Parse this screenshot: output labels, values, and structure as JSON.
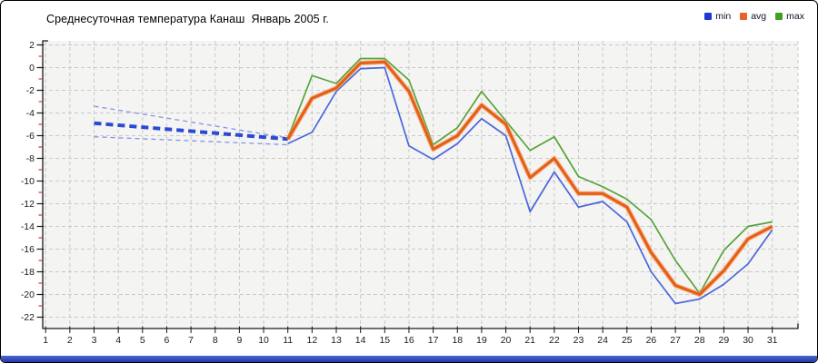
{
  "chart_data": {
    "type": "line",
    "title": "Среднесуточная температура Канаш  Январь 2005 г.",
    "xlabel": "",
    "ylabel": "",
    "xlim": [
      1,
      31
    ],
    "ylim": [
      -22,
      2
    ],
    "ytick_step": 2,
    "xtick_step": 1,
    "grid": true,
    "legend_position": "top-right",
    "legend": [
      {
        "label": "min",
        "color": "#1d39d4"
      },
      {
        "label": "avg",
        "color": "#e8632a"
      },
      {
        "label": "max",
        "color": "#3fa021"
      }
    ],
    "x": [
      11,
      12,
      13,
      14,
      15,
      16,
      17,
      18,
      19,
      20,
      21,
      22,
      23,
      24,
      25,
      26,
      27,
      28,
      29,
      30,
      31
    ],
    "series": [
      {
        "name": "min",
        "color": "#4a67dd",
        "values": [
          -6.7,
          -5.7,
          -2.1,
          -0.1,
          0.0,
          -6.9,
          -8.1,
          -6.7,
          -4.5,
          -6.0,
          -12.7,
          -9.2,
          -12.3,
          -11.8,
          -13.6,
          -18.0,
          -20.8,
          -20.4,
          -19.1,
          -17.3,
          -14.3
        ]
      },
      {
        "name": "avg",
        "color": "#e55f17",
        "halo": "#f49a63",
        "values": [
          -6.3,
          -2.7,
          -1.8,
          0.4,
          0.5,
          -2.1,
          -7.2,
          -6.0,
          -3.3,
          -5.0,
          -9.7,
          -8.0,
          -11.1,
          -11.1,
          -12.3,
          -16.3,
          -19.2,
          -20.0,
          -17.9,
          -15.1,
          -14.0
        ]
      },
      {
        "name": "max",
        "color": "#57a33b",
        "values": [
          -6.2,
          -0.7,
          -1.4,
          0.8,
          0.8,
          -1.1,
          -6.8,
          -5.3,
          -2.1,
          -4.7,
          -7.3,
          -6.1,
          -9.6,
          -10.5,
          -11.6,
          -13.4,
          -17.0,
          -19.9,
          -16.1,
          -14.0,
          -13.6
        ]
      }
    ],
    "dashed_projection": {
      "color_thin": "#8493e8",
      "color_thick": "#2c49d6",
      "lines": [
        {
          "style": "thin",
          "x": [
            3,
            11
          ],
          "values": [
            -3.4,
            -6.2
          ]
        },
        {
          "style": "thick",
          "x": [
            3,
            11
          ],
          "values": [
            -4.9,
            -6.3
          ]
        },
        {
          "style": "thin",
          "x": [
            3,
            11
          ],
          "values": [
            -6.1,
            -6.8
          ]
        }
      ]
    },
    "style": {
      "plot_bg": "#f4f4f2",
      "grid_color": "#c9c9c9",
      "axis_color": "#1a1a1a",
      "minor_tick_color": "#cc2218",
      "label_color": "#1a1a1a"
    }
  },
  "window": {
    "bottom_bar_top": "#4a67d9",
    "bottom_bar_bottom": "#23399f"
  }
}
